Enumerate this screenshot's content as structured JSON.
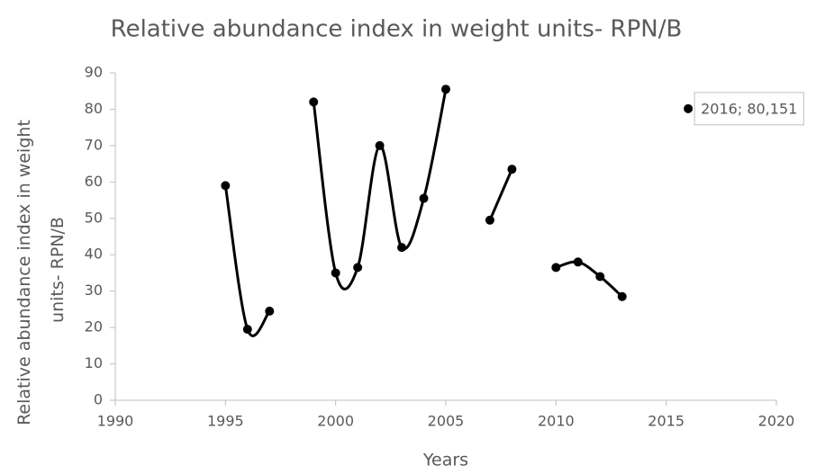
{
  "chart_data": {
    "type": "line",
    "title": "Relative abundance index in weight units- RPN/B",
    "xlabel": "Years",
    "ylabel": [
      "Relative abundance index in weight",
      "units- RPN/B"
    ],
    "x": [
      1995,
      1996,
      1997,
      1998,
      1999,
      2000,
      2001,
      2002,
      2003,
      2004,
      2005,
      2006,
      2007,
      2008,
      2009,
      2010,
      2011,
      2012,
      2013,
      2014,
      2015,
      2016
    ],
    "series": [
      {
        "color": "#000000",
        "values": [
          59,
          19.5,
          24.5,
          null,
          82,
          35,
          36.5,
          70,
          42,
          55.5,
          85.5,
          null,
          49.5,
          63.5,
          null,
          36.5,
          38,
          34,
          28.5,
          null,
          null,
          80.151
        ],
        "value_labels": [
          null,
          null,
          null,
          null,
          null,
          null,
          null,
          null,
          null,
          null,
          null,
          null,
          null,
          null,
          null,
          null,
          null,
          null,
          null,
          null,
          null,
          "2016; 80,151"
        ]
      }
    ],
    "smooth": true,
    "xlim": [
      1990,
      2020
    ],
    "xticks": [
      1990,
      1995,
      2000,
      2005,
      2010,
      2015,
      2020
    ],
    "ylim": [
      0,
      90
    ],
    "yticks": [
      0,
      10,
      20,
      30,
      40,
      50,
      60,
      70,
      80,
      90
    ],
    "grid": false
  }
}
